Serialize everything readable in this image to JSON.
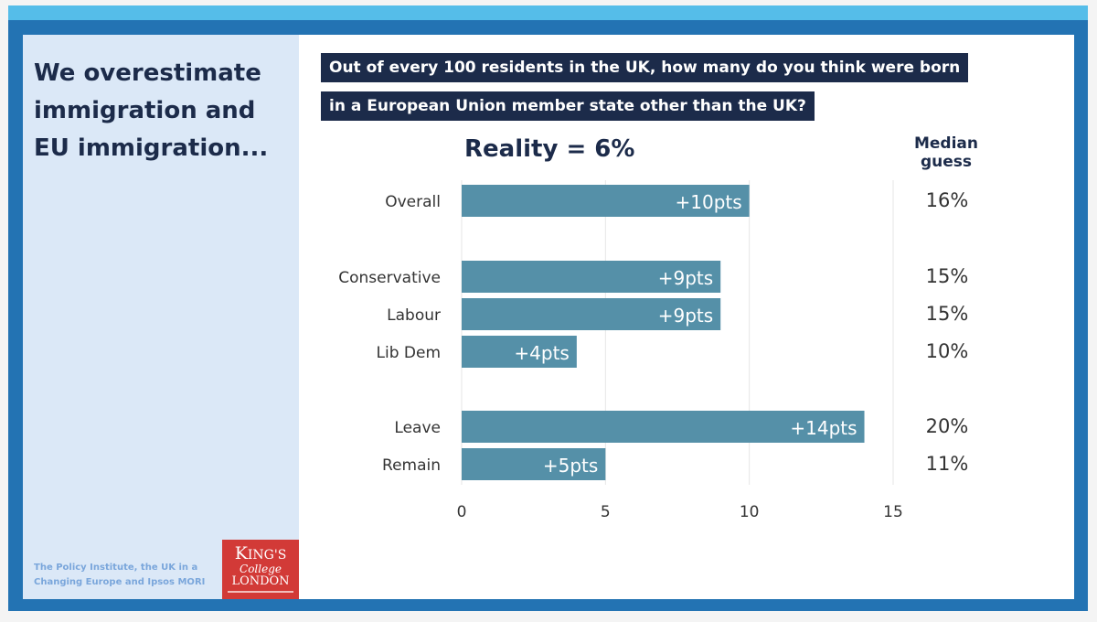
{
  "slide": {
    "headline": "We overestimate immigration and EU immigration...",
    "question_line1": "Out of every 100 residents in the UK, how many do you think were born",
    "question_line2": "in a European Union member state other than the UK?",
    "reality": "Reality = 6%",
    "median_header": "Median guess",
    "source": "The Policy Institute, the UK in a Changing Europe and Ipsos MORI",
    "logo_text": "KING'S College LONDON",
    "colors": {
      "bar": "#5590a8",
      "navy": "#1c2b4a",
      "frame": "#2373b3",
      "panel": "#dbe8f7"
    }
  },
  "chart_data": {
    "type": "bar",
    "orientation": "horizontal",
    "categories": [
      "Overall",
      "Conservative",
      "Labour",
      "Lib Dem",
      "Leave",
      "Remain"
    ],
    "values": [
      10,
      9,
      9,
      4,
      14,
      5
    ],
    "data_labels": [
      "+10pts",
      "+9pts",
      "+9pts",
      "+4pts",
      "+14pts",
      "+5pts"
    ],
    "median_guess": [
      "16%",
      "15%",
      "15%",
      "10%",
      "20%",
      "11%"
    ],
    "xlim": [
      0,
      15
    ],
    "xticks": [
      "0",
      "5",
      "10",
      "15"
    ],
    "grid": true
  }
}
